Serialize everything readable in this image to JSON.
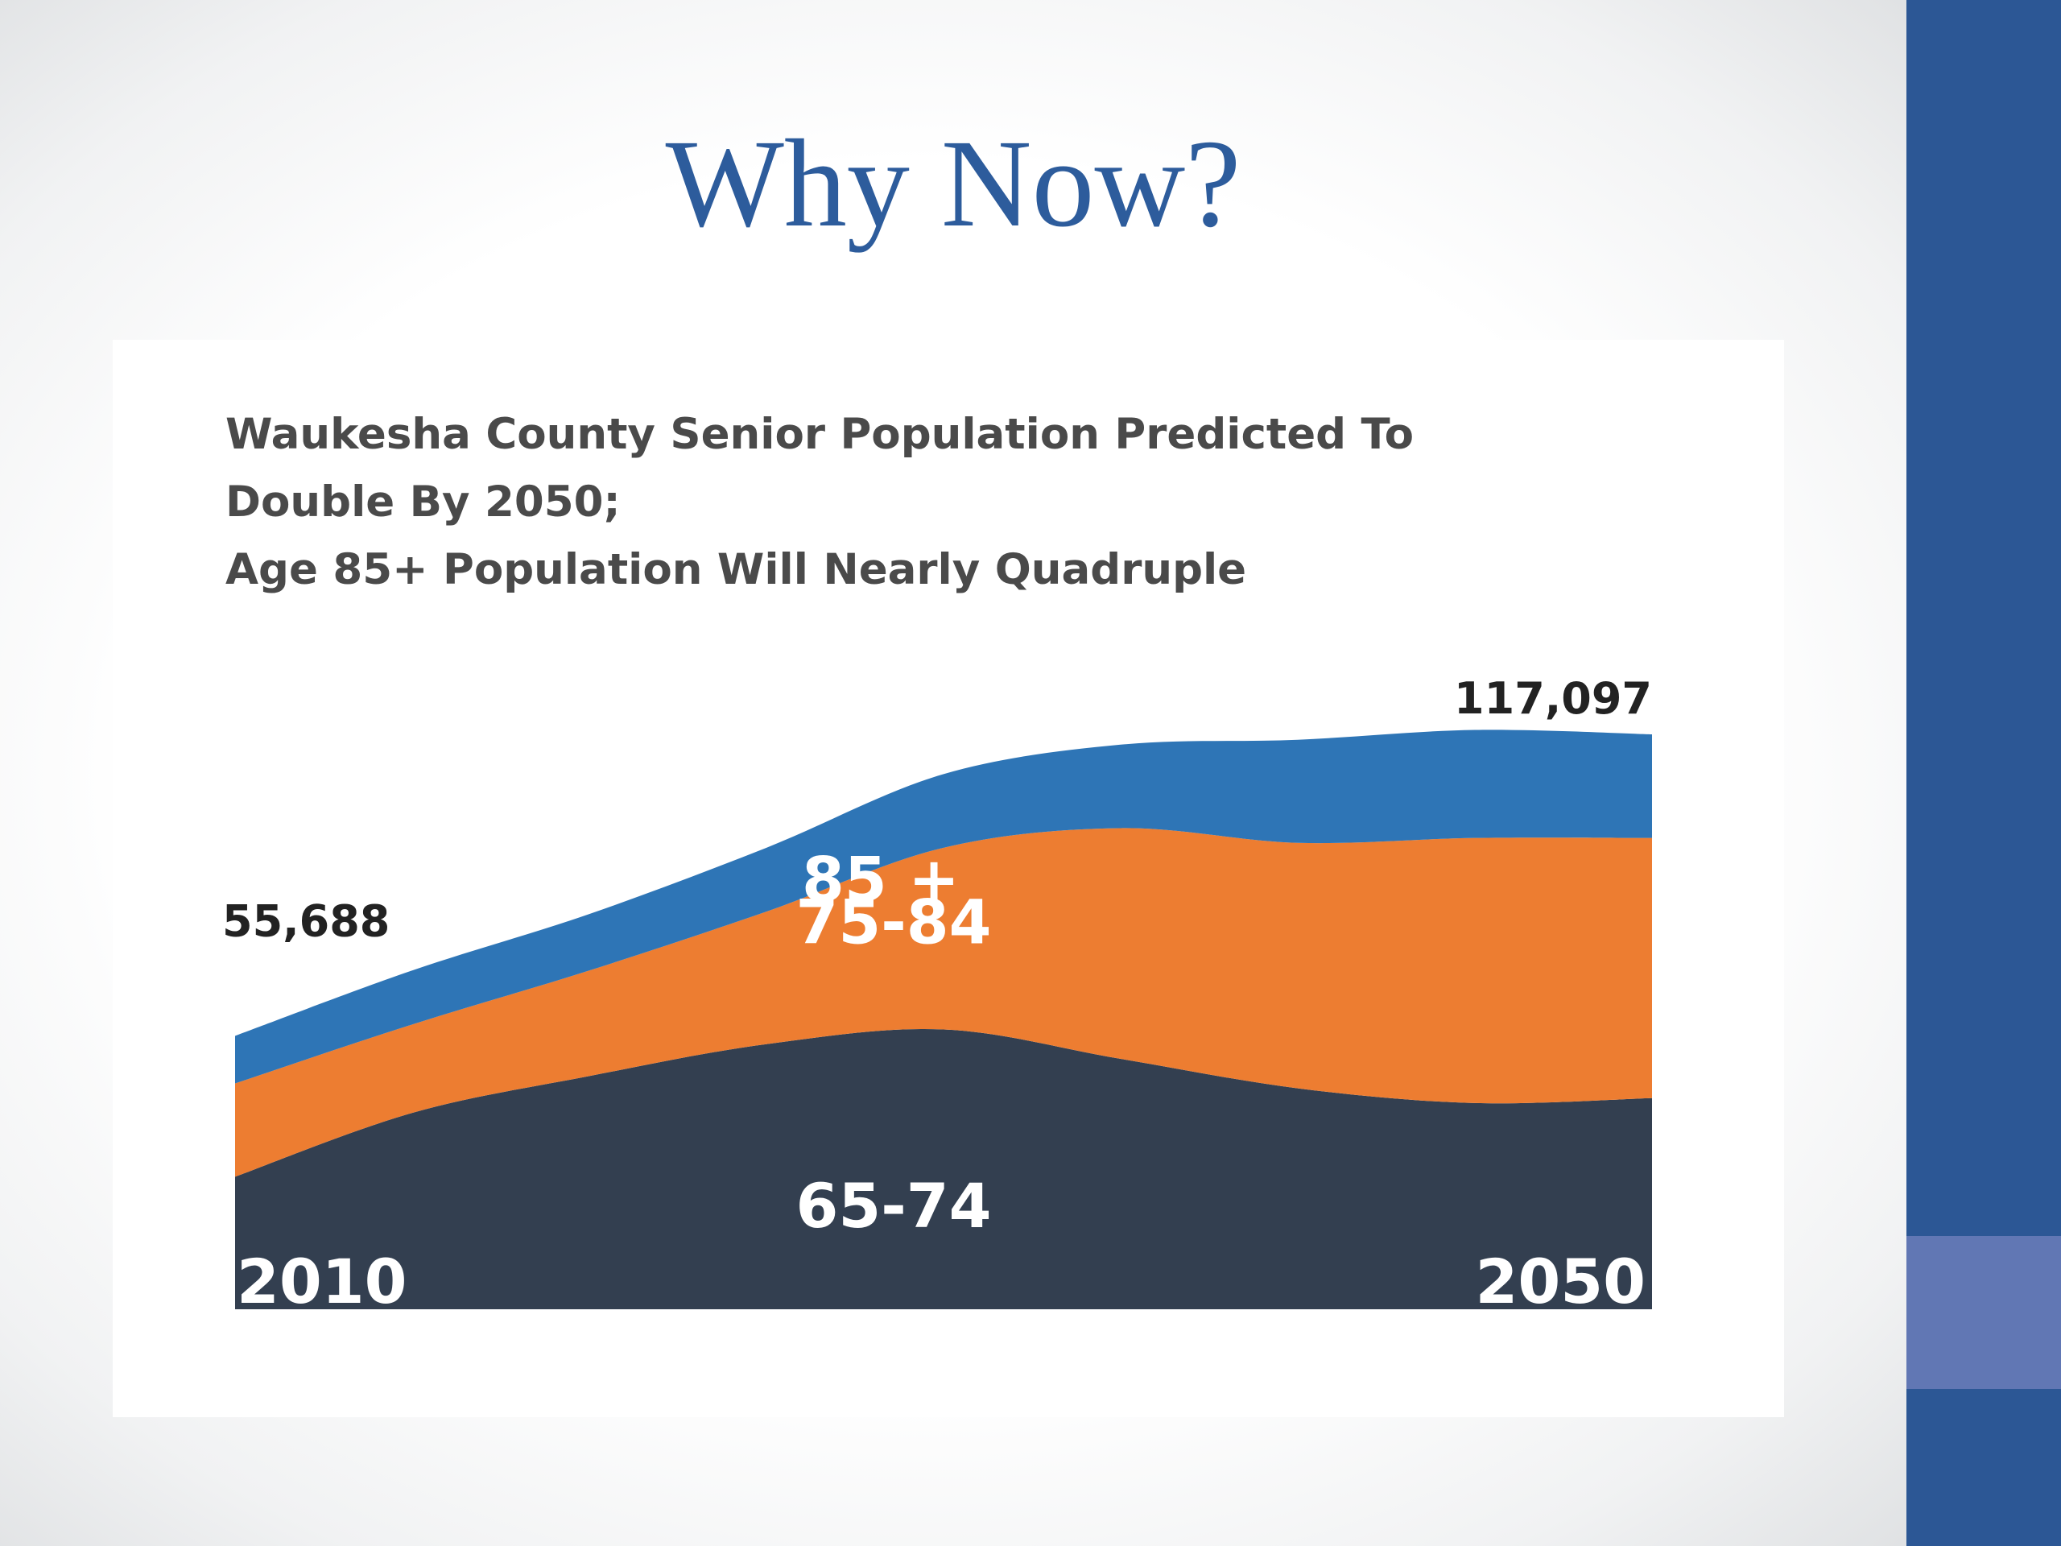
{
  "slide": {
    "title": "Why Now?"
  },
  "colors": {
    "sidebar": "#2c5795",
    "sidebar_accent": "#6177b4",
    "title": "#2d5c9c",
    "age_65_74": "#333f50",
    "age_75_84": "#ed7d31",
    "age_85_plus": "#2e75b6"
  },
  "chart_data": {
    "type": "area",
    "stacked": true,
    "title_lines": [
      "Waukesha County Senior Population Predicted To",
      "Double By 2050;",
      "Age 85+ Population Will Nearly Quadruple"
    ],
    "x": [
      2010,
      2015,
      2020,
      2025,
      2030,
      2035,
      2040,
      2045,
      2050
    ],
    "x_labels": [
      "2010",
      "2050"
    ],
    "series": [
      {
        "name": "65-74",
        "color": "#333f50",
        "values": [
          27000,
          40000,
          47500,
          54000,
          57000,
          51000,
          45000,
          42000,
          43000
        ]
      },
      {
        "name": "75-84",
        "color": "#ed7d31",
        "values": [
          19000,
          18000,
          21500,
          27000,
          37000,
          47000,
          50000,
          54000,
          53000
        ]
      },
      {
        "name": "85 +",
        "color": "#2e75b6",
        "values": [
          9688,
          11000,
          11500,
          13000,
          15000,
          17000,
          21000,
          22000,
          21097
        ]
      }
    ],
    "annotations": {
      "start_total": "55,688",
      "end_total": "117,097"
    },
    "ylim": [
      0,
      117097
    ],
    "grid": false,
    "legend": "inline labels"
  }
}
